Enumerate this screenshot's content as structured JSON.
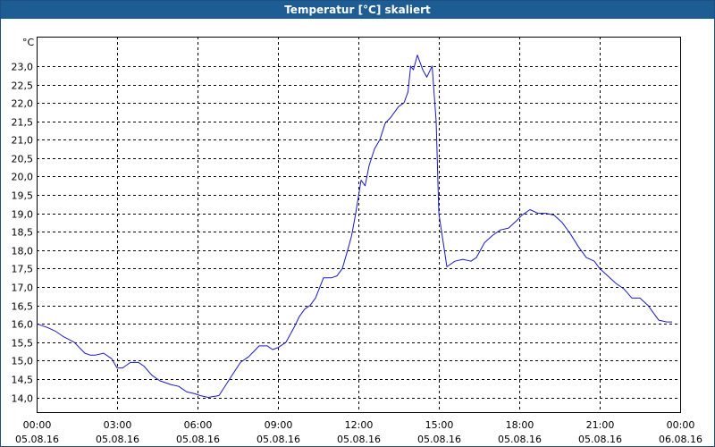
{
  "window": {
    "title": "Temperatur [°C] skaliert"
  },
  "chart_data": {
    "type": "line",
    "title": "Temperatur [°C] skaliert",
    "ylabel": "°C",
    "xlabel": "",
    "ylim": [
      13.6,
      23.8
    ],
    "yticks": [
      14.0,
      14.5,
      15.0,
      15.5,
      16.0,
      16.5,
      17.0,
      17.5,
      18.0,
      18.5,
      19.0,
      19.5,
      20.0,
      20.5,
      21.0,
      21.5,
      22.0,
      22.5,
      23.0
    ],
    "ytick_labels": [
      "14,0",
      "14,5",
      "15,0",
      "15,5",
      "16,0",
      "16,5",
      "17,0",
      "17,5",
      "18,0",
      "18,5",
      "19,0",
      "19,5",
      "20,0",
      "20,5",
      "21,0",
      "21,5",
      "22,0",
      "22,5",
      "23,0"
    ],
    "xlim_hours": [
      0,
      24
    ],
    "xtick_hours": [
      0,
      3,
      6,
      9,
      12,
      15,
      18,
      21,
      24
    ],
    "xtick_labels": [
      {
        "time": "00:00",
        "date": "05.08.16"
      },
      {
        "time": "03:00",
        "date": "05.08.16"
      },
      {
        "time": "06:00",
        "date": "05.08.16"
      },
      {
        "time": "09:00",
        "date": "05.08.16"
      },
      {
        "time": "12:00",
        "date": "05.08.16"
      },
      {
        "time": "15:00",
        "date": "05.08.16"
      },
      {
        "time": "18:00",
        "date": "05.08.16"
      },
      {
        "time": "21:00",
        "date": "05.08.16"
      },
      {
        "time": "00:00",
        "date": "06.08.16"
      }
    ],
    "grid": true,
    "series": [
      {
        "color": "#1818c8",
        "x_hours": [
          0.0,
          0.4,
          0.7,
          1.0,
          1.4,
          1.8,
          2.0,
          2.2,
          2.5,
          2.8,
          3.0,
          3.2,
          3.5,
          3.8,
          4.0,
          4.3,
          4.6,
          5.0,
          5.3,
          5.6,
          5.9,
          6.1,
          6.4,
          6.8,
          7.2,
          7.6,
          7.9,
          8.1,
          8.3,
          8.6,
          8.8,
          9.0,
          9.3,
          9.6,
          9.8,
          10.0,
          10.2,
          10.4,
          10.7,
          11.0,
          11.2,
          11.4,
          11.6,
          11.75,
          11.9,
          12.1,
          12.25,
          12.4,
          12.6,
          12.8,
          13.0,
          13.2,
          13.5,
          13.7,
          13.85,
          13.95,
          14.05,
          14.2,
          14.4,
          14.55,
          14.75,
          14.9,
          15.0,
          15.3,
          15.6,
          15.9,
          16.2,
          16.4,
          16.7,
          17.0,
          17.3,
          17.6,
          17.9,
          18.1,
          18.4,
          18.7,
          19.0,
          19.3,
          19.6,
          19.9,
          20.2,
          20.5,
          20.8,
          21.0,
          21.3,
          21.6,
          21.9,
          22.2,
          22.5,
          22.8,
          23.0,
          23.2,
          23.5,
          23.7
        ],
        "y": [
          16.0,
          15.9,
          15.8,
          15.65,
          15.5,
          15.2,
          15.15,
          15.15,
          15.2,
          15.05,
          14.8,
          14.8,
          14.95,
          14.95,
          14.85,
          14.6,
          14.45,
          14.35,
          14.3,
          14.15,
          14.1,
          14.05,
          14.0,
          14.05,
          14.5,
          14.95,
          15.1,
          15.25,
          15.4,
          15.4,
          15.3,
          15.35,
          15.5,
          15.9,
          16.2,
          16.4,
          16.5,
          16.7,
          17.25,
          17.25,
          17.3,
          17.5,
          18.0,
          18.4,
          19.0,
          19.9,
          19.75,
          20.3,
          20.75,
          21.0,
          21.45,
          21.6,
          21.9,
          22.0,
          22.3,
          23.0,
          22.9,
          23.3,
          22.9,
          22.7,
          23.0,
          21.5,
          19.0,
          17.55,
          17.7,
          17.75,
          17.7,
          17.8,
          18.2,
          18.4,
          18.55,
          18.6,
          18.8,
          18.95,
          19.1,
          19.0,
          19.0,
          18.95,
          18.75,
          18.45,
          18.1,
          17.8,
          17.7,
          17.5,
          17.3,
          17.1,
          16.95,
          16.7,
          16.7,
          16.5,
          16.3,
          16.1,
          16.05,
          16.05
        ]
      }
    ]
  }
}
